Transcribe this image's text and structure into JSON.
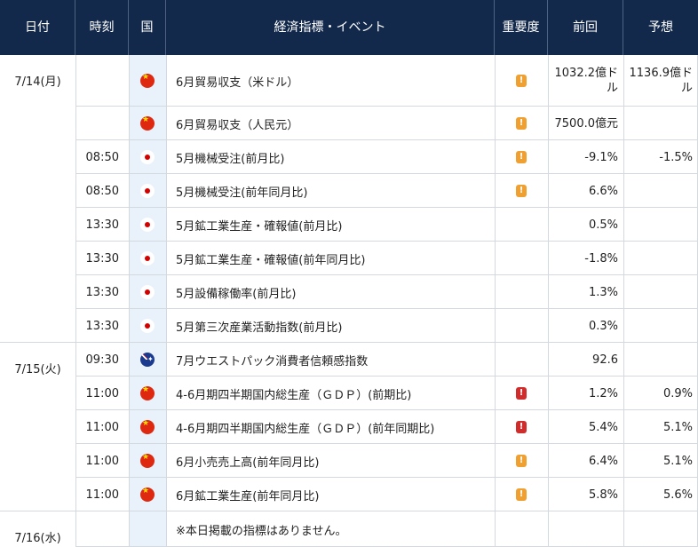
{
  "headers": {
    "date": "日付",
    "time": "時刻",
    "country": "国",
    "event": "経済指標・イベント",
    "importance": "重要度",
    "previous": "前回",
    "forecast": "予想"
  },
  "colors": {
    "header_bg": "#13294b",
    "flag_col_bg": "#e9f2fb",
    "imp_mid": "#f0a030",
    "imp_high": "#d02c2c"
  },
  "rows": [
    {
      "date": "7/14(月)",
      "time": "",
      "flag": "china-flag-icon",
      "event": "6月貿易収支（米ドル）",
      "importance": "mid",
      "importance_mark": "!",
      "previous": "1032.2億ドル",
      "forecast": "1136.9億ドル"
    },
    {
      "date": "",
      "time": "",
      "flag": "china-flag-icon",
      "event": "6月貿易収支（人民元）",
      "importance": "mid",
      "importance_mark": "!",
      "previous": "7500.0億元",
      "forecast": ""
    },
    {
      "date": "",
      "time": "08:50",
      "flag": "japan-flag-icon",
      "event": "5月機械受注(前月比)",
      "importance": "mid",
      "importance_mark": "!",
      "previous": "-9.1%",
      "forecast": "-1.5%"
    },
    {
      "date": "",
      "time": "08:50",
      "flag": "japan-flag-icon",
      "event": "5月機械受注(前年同月比)",
      "importance": "mid",
      "importance_mark": "!",
      "previous": "6.6%",
      "forecast": ""
    },
    {
      "date": "",
      "time": "13:30",
      "flag": "japan-flag-icon",
      "event": "5月鉱工業生産・確報値(前月比)",
      "importance": "",
      "importance_mark": "",
      "previous": "0.5%",
      "forecast": ""
    },
    {
      "date": "",
      "time": "13:30",
      "flag": "japan-flag-icon",
      "event": "5月鉱工業生産・確報値(前年同月比)",
      "importance": "",
      "importance_mark": "",
      "previous": "-1.8%",
      "forecast": ""
    },
    {
      "date": "",
      "time": "13:30",
      "flag": "japan-flag-icon",
      "event": "5月設備稼働率(前月比)",
      "importance": "",
      "importance_mark": "",
      "previous": "1.3%",
      "forecast": ""
    },
    {
      "date": "",
      "time": "13:30",
      "flag": "japan-flag-icon",
      "event": "5月第三次産業活動指数(前月比)",
      "importance": "",
      "importance_mark": "",
      "previous": "0.3%",
      "forecast": ""
    },
    {
      "date": "7/15(火)",
      "time": "09:30",
      "flag": "australia-flag-icon",
      "event": "7月ウエストパック消費者信頼感指数",
      "importance": "",
      "importance_mark": "",
      "previous": "92.6",
      "forecast": ""
    },
    {
      "date": "",
      "time": "11:00",
      "flag": "china-flag-icon",
      "event": "4-6月期四半期国内総生産（ＧＤＰ）(前期比)",
      "importance": "high",
      "importance_mark": "!",
      "previous": "1.2%",
      "forecast": "0.9%"
    },
    {
      "date": "",
      "time": "11:00",
      "flag": "china-flag-icon",
      "event": "4-6月期四半期国内総生産（ＧＤＰ）(前年同期比)",
      "importance": "high",
      "importance_mark": "!",
      "previous": "5.4%",
      "forecast": "5.1%"
    },
    {
      "date": "",
      "time": "11:00",
      "flag": "china-flag-icon",
      "event": "6月小売売上高(前年同月比)",
      "importance": "mid",
      "importance_mark": "!",
      "previous": "6.4%",
      "forecast": "5.1%"
    },
    {
      "date": "",
      "time": "11:00",
      "flag": "china-flag-icon",
      "event": "6月鉱工業生産(前年同月比)",
      "importance": "mid",
      "importance_mark": "!",
      "previous": "5.8%",
      "forecast": "5.6%"
    },
    {
      "date": "7/16(水)",
      "time": "",
      "flag": "",
      "event": "※本日掲載の指標はありません。",
      "importance": "",
      "importance_mark": "",
      "previous": "",
      "forecast": ""
    }
  ]
}
